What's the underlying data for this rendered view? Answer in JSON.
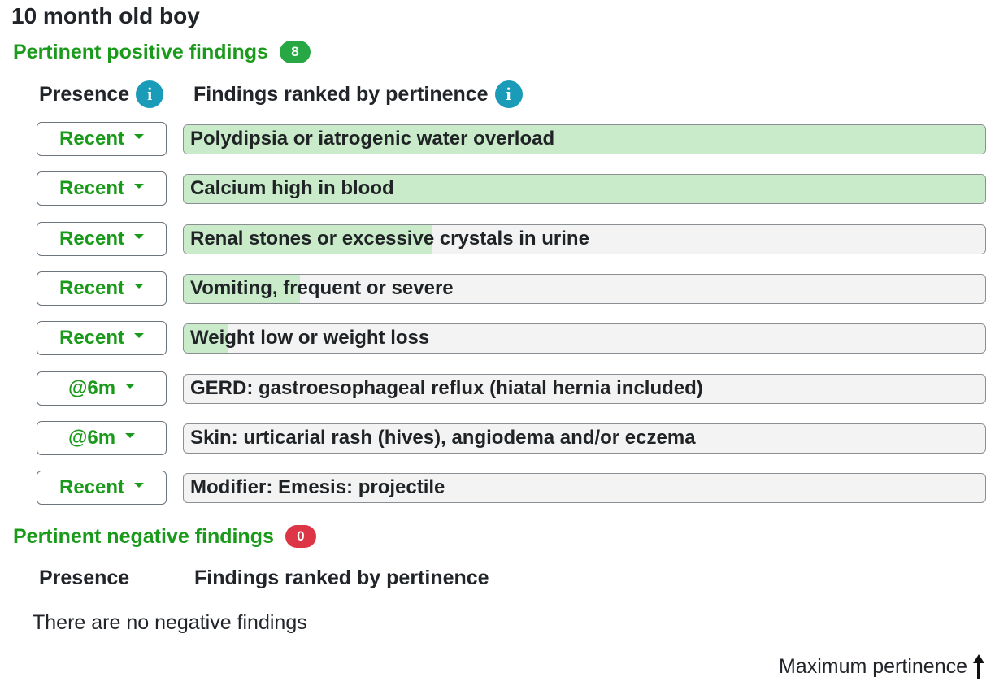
{
  "patient": {
    "title": "10 month old boy"
  },
  "positive": {
    "heading": "Pertinent positive findings",
    "count": "8",
    "badge_color": "#28a745",
    "presence_header": "Presence",
    "findings_header": "Findings ranked by pertinence",
    "info_icon": "info-icon",
    "findings": [
      {
        "presence": "Recent",
        "label": "Polydipsia or iatrogenic water overload",
        "pertinence": 1.0
      },
      {
        "presence": "Recent",
        "label": "Calcium high in blood",
        "pertinence": 1.0
      },
      {
        "presence": "Recent",
        "label": "Renal stones or excessive crystals in urine",
        "pertinence": 0.31
      },
      {
        "presence": "Recent",
        "label": "Vomiting, frequent or severe",
        "pertinence": 0.145
      },
      {
        "presence": "Recent",
        "label": "Weight low or weight loss",
        "pertinence": 0.055
      },
      {
        "presence": "@6m",
        "label": "GERD: gastroesophageal reflux (hiatal hernia included)",
        "pertinence": 0.0
      },
      {
        "presence": "@6m",
        "label": "Skin: urticarial rash (hives), angiodema and/or eczema",
        "pertinence": 0.0
      },
      {
        "presence": "Recent",
        "label": "Modifier: Emesis: projectile",
        "pertinence": 0.0
      }
    ]
  },
  "negative": {
    "heading": "Pertinent negative findings",
    "count": "0",
    "badge_color": "#dc3545",
    "presence_header": "Presence",
    "findings_header": "Findings ranked by pertinence",
    "empty_text": "There are no negative findings"
  },
  "footer": {
    "max_pertinence_label": "Maximum pertinence",
    "arrow_icon": "arrow-up-icon"
  },
  "colors": {
    "accent_green": "#1a9a1a",
    "bar_fill": "#c9ebc9",
    "info_blue": "#1a9bb7"
  }
}
